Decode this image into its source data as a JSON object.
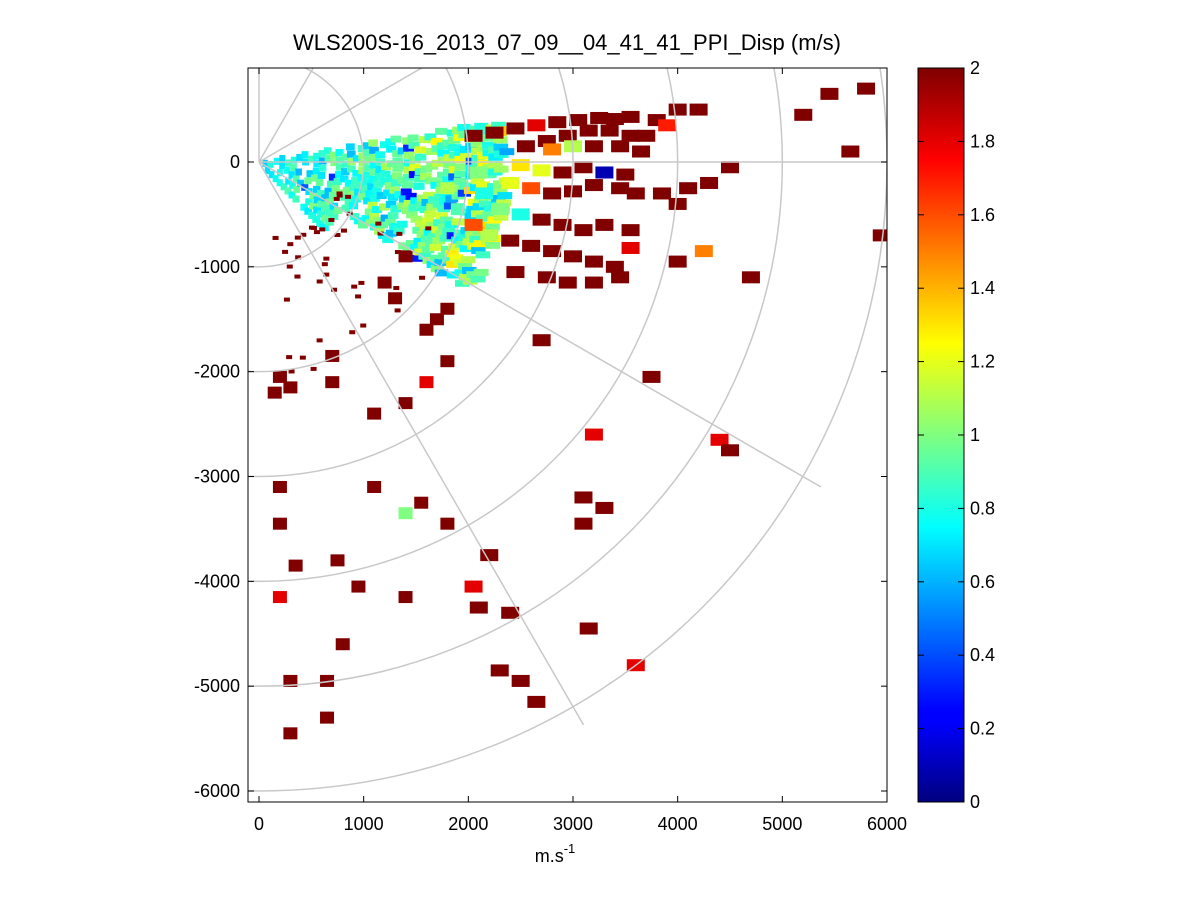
{
  "chart_data": {
    "type": "heatmap",
    "subtype": "polar PPI scan (lidar)",
    "title": "WLS200S-16_2013_07_09__04_41_41_PPI_Disp (m/s)",
    "xlabel": "m.s",
    "xlabel_superscript": "-1",
    "ylabel": "",
    "xlim": [
      -100,
      6000
    ],
    "ylim": [
      -6100,
      900
    ],
    "x_ticks": [
      0,
      1000,
      2000,
      3000,
      4000,
      5000,
      6000
    ],
    "x_tick_labels": [
      "0",
      "1000",
      "2000",
      "3000",
      "4000",
      "5000",
      "6000"
    ],
    "y_ticks": [
      0,
      -1000,
      -2000,
      -3000,
      -4000,
      -5000,
      -6000
    ],
    "y_tick_labels": [
      "0",
      "-1000",
      "-2000",
      "-3000",
      "-4000",
      "-5000",
      "-6000"
    ],
    "polar_grid": {
      "range_rings": [
        1000,
        2000,
        3000,
        4000,
        5000,
        6000
      ],
      "spokes_deg_ccw_from_east": [
        90,
        60,
        30,
        0,
        -30,
        -60
      ]
    },
    "colorbar": {
      "colormap": "jet",
      "min": 0,
      "max": 2,
      "ticks": [
        0,
        0.2,
        0.4,
        0.6,
        0.8,
        1,
        1.2,
        1.4,
        1.6,
        1.8,
        2
      ],
      "tick_labels": [
        "0",
        "0.2",
        "0.4",
        "0.6",
        "0.8",
        "1",
        "1.2",
        "1.4",
        "1.6",
        "1.8",
        "2"
      ]
    },
    "grid": true,
    "scan_sector_deg": [
      -45,
      10
    ],
    "cells": [
      [
        2050,
        250,
        2.0
      ],
      [
        2250,
        280,
        2.0
      ],
      [
        2450,
        320,
        2.0
      ],
      [
        2650,
        350,
        1.8
      ],
      [
        2850,
        380,
        2.0
      ],
      [
        3050,
        400,
        2.0
      ],
      [
        3250,
        420,
        2.0
      ],
      [
        3400,
        410,
        2.0
      ],
      [
        3550,
        430,
        2.0
      ],
      [
        2550,
        150,
        2.0
      ],
      [
        2750,
        200,
        2.0
      ],
      [
        2950,
        250,
        2.0
      ],
      [
        3150,
        300,
        2.0
      ],
      [
        3350,
        300,
        2.0
      ],
      [
        3550,
        250,
        2.0
      ],
      [
        3700,
        250,
        2.0
      ],
      [
        2800,
        120,
        1.5
      ],
      [
        3000,
        150,
        1.1
      ],
      [
        3200,
        150,
        2.0
      ],
      [
        3450,
        150,
        2.0
      ],
      [
        3650,
        100,
        2.0
      ],
      [
        2500,
        -30,
        1.3
      ],
      [
        2700,
        -80,
        1.2
      ],
      [
        2900,
        -100,
        2.0
      ],
      [
        3100,
        -50,
        2.0
      ],
      [
        3300,
        -100,
        0.1
      ],
      [
        3500,
        -120,
        2.0
      ],
      [
        2400,
        -200,
        1.2
      ],
      [
        2600,
        -250,
        1.6
      ],
      [
        2800,
        -300,
        2.0
      ],
      [
        3000,
        -280,
        2.0
      ],
      [
        3200,
        -220,
        2.0
      ],
      [
        3450,
        -250,
        2.0
      ],
      [
        3600,
        -300,
        2.0
      ],
      [
        2300,
        -450,
        1.0
      ],
      [
        2500,
        -500,
        0.8
      ],
      [
        2700,
        -550,
        2.0
      ],
      [
        2900,
        -600,
        2.0
      ],
      [
        3100,
        -650,
        2.0
      ],
      [
        3300,
        -600,
        2.0
      ],
      [
        3550,
        -650,
        2.0
      ],
      [
        2200,
        -700,
        1.1
      ],
      [
        2400,
        -750,
        2.0
      ],
      [
        2600,
        -800,
        2.0
      ],
      [
        2800,
        -850,
        2.0
      ],
      [
        3000,
        -900,
        2.0
      ],
      [
        3200,
        -950,
        2.0
      ],
      [
        3400,
        -1000,
        2.0
      ],
      [
        3550,
        -820,
        1.8
      ],
      [
        2450,
        -1050,
        2.0
      ],
      [
        2750,
        -1100,
        2.0
      ],
      [
        2950,
        -1150,
        2.0
      ],
      [
        3200,
        -1150,
        2.0
      ],
      [
        3450,
        -1100,
        2.0
      ],
      [
        2150,
        -300,
        0.8
      ],
      [
        1900,
        -450,
        0.9
      ],
      [
        2050,
        -600,
        1.6
      ],
      [
        1800,
        -250,
        1.1
      ],
      [
        2100,
        -100,
        1.0
      ],
      [
        3850,
        -300,
        2.0
      ],
      [
        4000,
        -400,
        2.0
      ],
      [
        4100,
        -250,
        2.0
      ],
      [
        4300,
        -200,
        2.0
      ],
      [
        4250,
        -850,
        1.5
      ],
      [
        4500,
        -50,
        2.0
      ],
      [
        4000,
        500,
        2.0
      ],
      [
        4200,
        500,
        2.0
      ],
      [
        3800,
        400,
        2.0
      ],
      [
        3900,
        350,
        1.7
      ],
      [
        5200,
        450,
        2.0
      ],
      [
        5450,
        650,
        2.0
      ],
      [
        5800,
        700,
        2.0
      ],
      [
        5650,
        100,
        2.0
      ],
      [
        5950,
        -700,
        2.0
      ],
      [
        4000,
        -950,
        2.0
      ],
      [
        4700,
        -1100,
        2.0
      ],
      [
        4400,
        -2650,
        1.8
      ],
      [
        4500,
        -2750,
        2.0
      ],
      [
        3750,
        -2050,
        2.0
      ],
      [
        2700,
        -1700,
        2.0
      ],
      [
        3200,
        -2600,
        1.8
      ],
      [
        3300,
        -3300,
        2.0
      ],
      [
        3100,
        -3200,
        2.0
      ],
      [
        3100,
        -3450,
        2.0
      ],
      [
        3150,
        -4450,
        2.0
      ],
      [
        3600,
        -4800,
        1.8
      ],
      [
        1600,
        -2100,
        1.8
      ],
      [
        1800,
        -1900,
        2.0
      ],
      [
        1400,
        -2300,
        2.0
      ],
      [
        1400,
        -3350,
        1.0
      ],
      [
        1550,
        -3250,
        2.0
      ],
      [
        1800,
        -3450,
        2.0
      ],
      [
        1100,
        -3100,
        2.0
      ],
      [
        1100,
        -2400,
        2.0
      ],
      [
        700,
        -2100,
        2.0
      ],
      [
        700,
        -1850,
        2.0
      ],
      [
        2200,
        -3750,
        2.0
      ],
      [
        2050,
        -4050,
        1.8
      ],
      [
        2100,
        -4250,
        2.0
      ],
      [
        1400,
        -4150,
        2.0
      ],
      [
        950,
        -4050,
        2.0
      ],
      [
        2300,
        -4850,
        2.0
      ],
      [
        2500,
        -4950,
        2.0
      ],
      [
        2650,
        -5150,
        2.0
      ],
      [
        2400,
        -4300,
        2.0
      ],
      [
        200,
        -3100,
        2.0
      ],
      [
        200,
        -3450,
        2.0
      ],
      [
        350,
        -3850,
        2.0
      ],
      [
        750,
        -3800,
        2.0
      ],
      [
        200,
        -4150,
        1.8
      ],
      [
        800,
        -4600,
        2.0
      ],
      [
        650,
        -4950,
        2.0
      ],
      [
        300,
        -4950,
        2.0
      ],
      [
        650,
        -5300,
        2.0
      ],
      [
        300,
        -5450,
        2.0
      ],
      [
        150,
        -2200,
        2.0
      ],
      [
        200,
        -2050,
        2.0
      ],
      [
        300,
        -2150,
        2.0
      ],
      [
        1300,
        -1300,
        2.0
      ],
      [
        1800,
        -1400,
        2.0
      ],
      [
        1600,
        -1600,
        2.0
      ],
      [
        1700,
        -1500,
        2.0
      ],
      [
        1200,
        -1150,
        2.0
      ],
      [
        1400,
        -900,
        2.0
      ]
    ]
  }
}
